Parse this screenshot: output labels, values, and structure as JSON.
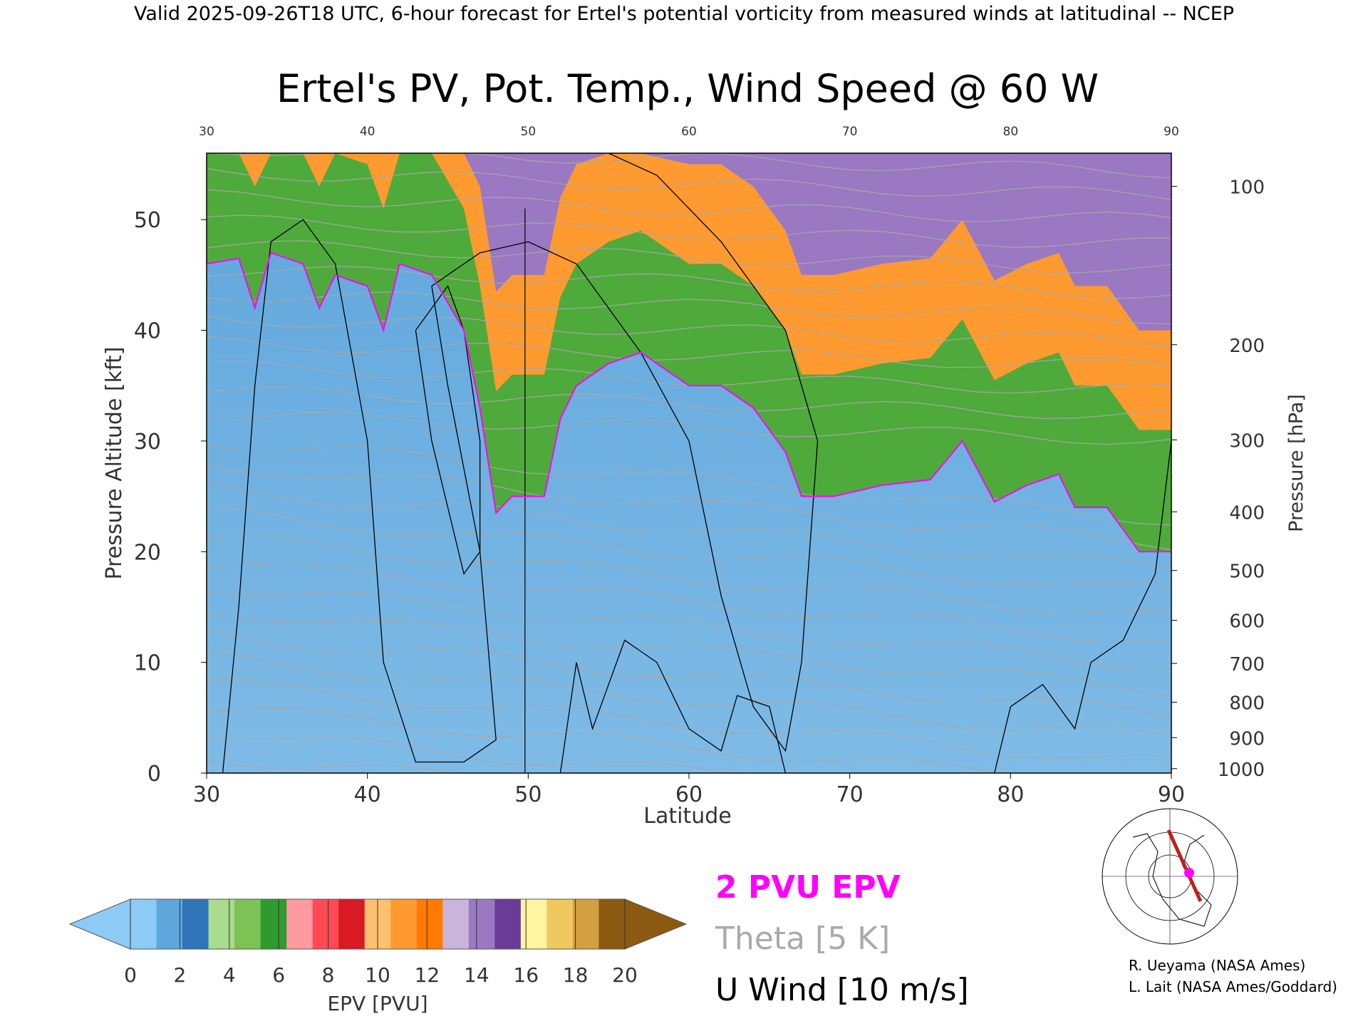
{
  "header": {
    "valid_line": "Valid 2025-09-26T18 UTC, 6-hour forecast for Ertel's potential vorticity from measured winds at latitudinal -- NCEP"
  },
  "chart_data": {
    "type": "heatmap",
    "title": "Ertel's PV, Pot. Temp., Wind Speed @ 60 W",
    "xlabel": "Latitude",
    "ylabel_left": "Pressure Altitude [kft]",
    "ylabel_right": "Pressure [hPa]",
    "xlim": [
      30,
      90
    ],
    "ylim": [
      0,
      56
    ],
    "x_ticks": [
      "30",
      "40",
      "50",
      "60",
      "70",
      "80",
      "90"
    ],
    "top_x_ticks": [
      "30",
      "40",
      "50",
      "60",
      "70",
      "80",
      "90"
    ],
    "y_ticks": [
      "0",
      "10",
      "20",
      "30",
      "40",
      "50"
    ],
    "pressure_ticks": [
      {
        "label": "100",
        "kft": 53.0
      },
      {
        "label": "200",
        "kft": 38.7
      },
      {
        "label": "300",
        "kft": 30.1
      },
      {
        "label": "400",
        "kft": 23.6
      },
      {
        "label": "500",
        "kft": 18.3
      },
      {
        "label": "600",
        "kft": 13.8
      },
      {
        "label": "700",
        "kft": 9.9
      },
      {
        "label": "800",
        "kft": 6.4
      },
      {
        "label": "900",
        "kft": 3.2
      },
      {
        "label": "1000",
        "kft": 0.4
      }
    ],
    "grid": false,
    "tropopause_2pvu_kft": [
      {
        "lat": 30,
        "kft": 46
      },
      {
        "lat": 32,
        "kft": 46.5
      },
      {
        "lat": 33,
        "kft": 42
      },
      {
        "lat": 34,
        "kft": 47
      },
      {
        "lat": 36,
        "kft": 46
      },
      {
        "lat": 37,
        "kft": 42
      },
      {
        "lat": 38,
        "kft": 45
      },
      {
        "lat": 40,
        "kft": 44
      },
      {
        "lat": 41,
        "kft": 40
      },
      {
        "lat": 42,
        "kft": 46
      },
      {
        "lat": 44,
        "kft": 45
      },
      {
        "lat": 46,
        "kft": 40
      },
      {
        "lat": 47,
        "kft": 33
      },
      {
        "lat": 48,
        "kft": 23.5
      },
      {
        "lat": 49,
        "kft": 25
      },
      {
        "lat": 51,
        "kft": 25
      },
      {
        "lat": 52,
        "kft": 32
      },
      {
        "lat": 53,
        "kft": 35
      },
      {
        "lat": 55,
        "kft": 37
      },
      {
        "lat": 57,
        "kft": 38
      },
      {
        "lat": 60,
        "kft": 35
      },
      {
        "lat": 62,
        "kft": 35
      },
      {
        "lat": 64,
        "kft": 33
      },
      {
        "lat": 66,
        "kft": 29
      },
      {
        "lat": 67,
        "kft": 25
      },
      {
        "lat": 69,
        "kft": 25
      },
      {
        "lat": 72,
        "kft": 26
      },
      {
        "lat": 75,
        "kft": 26.5
      },
      {
        "lat": 77,
        "kft": 30
      },
      {
        "lat": 79,
        "kft": 24.5
      },
      {
        "lat": 81,
        "kft": 26
      },
      {
        "lat": 83,
        "kft": 27
      },
      {
        "lat": 84,
        "kft": 24
      },
      {
        "lat": 86,
        "kft": 24
      },
      {
        "lat": 88,
        "kft": 20
      },
      {
        "lat": 90,
        "kft": 20
      }
    ],
    "series": [
      {
        "name": "2 PVU EPV",
        "color": "#ff00ff"
      },
      {
        "name": "Theta [5 K]",
        "color": "#aaaaaa"
      },
      {
        "name": "U Wind [10 m/s]",
        "color": "#000000"
      }
    ],
    "colorbar": {
      "label": "EPV [PVU]",
      "ticks": [
        "0",
        "2",
        "4",
        "6",
        "8",
        "10",
        "12",
        "14",
        "16",
        "18",
        "20"
      ],
      "colors": [
        "#8ccbf5",
        "#5fa6dc",
        "#2e74b8",
        "#a9dc8c",
        "#7cc254",
        "#2f9a2e",
        "#ff9aa2",
        "#ff4a55",
        "#d91a24",
        "#ffc070",
        "#ff9a30",
        "#ff7a00",
        "#c9b4dc",
        "#9b78c2",
        "#6a3c98",
        "#fff4a0",
        "#f0c860",
        "#d2a040",
        "#8b5a10"
      ]
    },
    "annotations": [
      "10",
      "20",
      "30",
      "0",
      "10"
    ]
  },
  "credits": {
    "line1": "R. Ueyama (NASA Ames)",
    "line2": "L. Lait (NASA Ames/Goddard)"
  },
  "inset_map": {
    "marker_color": "#ff00ff",
    "line_color": "#c0201a"
  }
}
